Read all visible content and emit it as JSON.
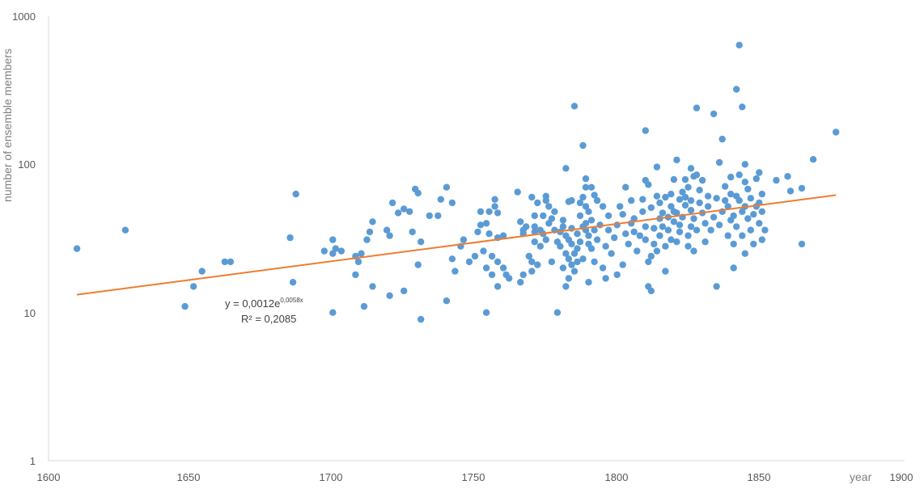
{
  "chart_data": {
    "type": "scatter",
    "title": "",
    "xlabel": "year",
    "ylabel": "number of ensemble members",
    "xlim": [
      1600,
      1900
    ],
    "ylim": [
      1,
      1000
    ],
    "yscale": "log",
    "grid": false,
    "legend": "none",
    "x_ticks": [
      "1600",
      "1650",
      "1700",
      "1750",
      "1800",
      "1850",
      "1900"
    ],
    "y_ticks": [
      "1",
      "10",
      "100",
      "1000"
    ],
    "marker_color": "#5b9bd5",
    "trendline": {
      "type": "exponential",
      "color": "#ed7d31",
      "a": 0.0012,
      "b": 0.0058,
      "x_range": [
        1610,
        1877
      ],
      "y_range": [
        13.2,
        62
      ],
      "equation_prefix": "y = 0,0012e",
      "equation_exponent": "0,0058x",
      "r2_label": "R² = 0,2085"
    },
    "points": [
      [
        1610,
        27
      ],
      [
        1627,
        36
      ],
      [
        1648,
        11
      ],
      [
        1651,
        15
      ],
      [
        1654,
        19
      ],
      [
        1662,
        22
      ],
      [
        1664,
        22
      ],
      [
        1685,
        32
      ],
      [
        1686,
        16
      ],
      [
        1687,
        63
      ],
      [
        1697,
        26
      ],
      [
        1700,
        31
      ],
      [
        1700,
        25
      ],
      [
        1700,
        10
      ],
      [
        1701,
        27
      ],
      [
        1703,
        26
      ],
      [
        1708,
        18
      ],
      [
        1708,
        24
      ],
      [
        1709,
        22
      ],
      [
        1710,
        25
      ],
      [
        1711,
        11
      ],
      [
        1712,
        31
      ],
      [
        1713,
        35
      ],
      [
        1714,
        15
      ],
      [
        1714,
        41
      ],
      [
        1719,
        36
      ],
      [
        1720,
        33
      ],
      [
        1720,
        13
      ],
      [
        1721,
        55
      ],
      [
        1723,
        47
      ],
      [
        1725,
        50
      ],
      [
        1725,
        14
      ],
      [
        1727,
        48
      ],
      [
        1728,
        35
      ],
      [
        1729,
        68
      ],
      [
        1730,
        64
      ],
      [
        1730,
        21
      ],
      [
        1731,
        9
      ],
      [
        1731,
        30
      ],
      [
        1734,
        45
      ],
      [
        1737,
        45
      ],
      [
        1738,
        58
      ],
      [
        1740,
        12
      ],
      [
        1740,
        70
      ],
      [
        1742,
        55
      ],
      [
        1742,
        23
      ],
      [
        1743,
        19
      ],
      [
        1745,
        28
      ],
      [
        1746,
        31
      ],
      [
        1748,
        22
      ],
      [
        1750,
        24
      ],
      [
        1751,
        35
      ],
      [
        1752,
        48
      ],
      [
        1752,
        39
      ],
      [
        1753,
        26
      ],
      [
        1754,
        20
      ],
      [
        1754,
        40
      ],
      [
        1754,
        10
      ],
      [
        1755,
        48
      ],
      [
        1755,
        34
      ],
      [
        1756,
        18
      ],
      [
        1756,
        24
      ],
      [
        1757,
        58
      ],
      [
        1757,
        52
      ],
      [
        1758,
        47
      ],
      [
        1758,
        22
      ],
      [
        1758,
        15
      ],
      [
        1758,
        32
      ],
      [
        1760,
        33
      ],
      [
        1760,
        20
      ],
      [
        1761,
        18
      ],
      [
        1762,
        17
      ],
      [
        1765,
        65
      ],
      [
        1766,
        41
      ],
      [
        1766,
        16
      ],
      [
        1767,
        36
      ],
      [
        1767,
        34
      ],
      [
        1767,
        18
      ],
      [
        1768,
        38
      ],
      [
        1769,
        24
      ],
      [
        1770,
        19
      ],
      [
        1770,
        60
      ],
      [
        1770,
        22
      ],
      [
        1771,
        45
      ],
      [
        1771,
        38
      ],
      [
        1771,
        30
      ],
      [
        1771,
        35
      ],
      [
        1772,
        21
      ],
      [
        1772,
        55
      ],
      [
        1773,
        28
      ],
      [
        1773,
        36
      ],
      [
        1774,
        45
      ],
      [
        1774,
        34
      ],
      [
        1775,
        61
      ],
      [
        1775,
        57
      ],
      [
        1775,
        31
      ],
      [
        1776,
        40
      ],
      [
        1776,
        52
      ],
      [
        1777,
        22
      ],
      [
        1777,
        43
      ],
      [
        1778,
        48
      ],
      [
        1778,
        36
      ],
      [
        1779,
        10
      ],
      [
        1779,
        30
      ],
      [
        1780,
        35
      ],
      [
        1780,
        28
      ],
      [
        1781,
        20
      ],
      [
        1781,
        38
      ],
      [
        1781,
        42
      ],
      [
        1782,
        94
      ],
      [
        1782,
        33
      ],
      [
        1782,
        25
      ],
      [
        1782,
        15
      ],
      [
        1783,
        17
      ],
      [
        1783,
        23
      ],
      [
        1783,
        31
      ],
      [
        1783,
        56
      ],
      [
        1784,
        57
      ],
      [
        1784,
        37
      ],
      [
        1784,
        21
      ],
      [
        1784,
        29
      ],
      [
        1785,
        247
      ],
      [
        1785,
        25
      ],
      [
        1785,
        19
      ],
      [
        1786,
        27
      ],
      [
        1786,
        34
      ],
      [
        1786,
        22
      ],
      [
        1787,
        45
      ],
      [
        1787,
        55
      ],
      [
        1787,
        30
      ],
      [
        1788,
        38
      ],
      [
        1788,
        60
      ],
      [
        1788,
        23
      ],
      [
        1788,
        134
      ],
      [
        1789,
        80
      ],
      [
        1789,
        70
      ],
      [
        1789,
        52
      ],
      [
        1789,
        36
      ],
      [
        1789,
        40
      ],
      [
        1790,
        48
      ],
      [
        1790,
        29
      ],
      [
        1790,
        33
      ],
      [
        1790,
        16
      ],
      [
        1791,
        70
      ],
      [
        1791,
        42
      ],
      [
        1791,
        27
      ],
      [
        1792,
        62
      ],
      [
        1792,
        36
      ],
      [
        1792,
        22
      ],
      [
        1793,
        57
      ],
      [
        1793,
        31
      ],
      [
        1794,
        39
      ],
      [
        1795,
        20
      ],
      [
        1795,
        52
      ],
      [
        1796,
        28
      ],
      [
        1796,
        17
      ],
      [
        1797,
        36
      ],
      [
        1797,
        45
      ],
      [
        1798,
        25
      ],
      [
        1799,
        32
      ],
      [
        1800,
        39
      ],
      [
        1800,
        18
      ],
      [
        1801,
        52
      ],
      [
        1802,
        21
      ],
      [
        1802,
        46
      ],
      [
        1803,
        70
      ],
      [
        1803,
        34
      ],
      [
        1804,
        29
      ],
      [
        1805,
        57
      ],
      [
        1805,
        40
      ],
      [
        1806,
        43
      ],
      [
        1806,
        35
      ],
      [
        1807,
        26
      ],
      [
        1808,
        33
      ],
      [
        1809,
        48
      ],
      [
        1809,
        58
      ],
      [
        1810,
        169
      ],
      [
        1810,
        78
      ],
      [
        1810,
        38
      ],
      [
        1810,
        31
      ],
      [
        1811,
        15
      ],
      [
        1811,
        22
      ],
      [
        1811,
        73
      ],
      [
        1812,
        14
      ],
      [
        1812,
        51
      ],
      [
        1812,
        24
      ],
      [
        1813,
        29
      ],
      [
        1813,
        37
      ],
      [
        1814,
        26
      ],
      [
        1814,
        61
      ],
      [
        1814,
        96
      ],
      [
        1815,
        43
      ],
      [
        1815,
        55
      ],
      [
        1815,
        33
      ],
      [
        1816,
        47
      ],
      [
        1816,
        38
      ],
      [
        1817,
        19
      ],
      [
        1817,
        60
      ],
      [
        1817,
        28
      ],
      [
        1818,
        44
      ],
      [
        1818,
        36
      ],
      [
        1819,
        52
      ],
      [
        1819,
        31
      ],
      [
        1819,
        63
      ],
      [
        1820,
        79
      ],
      [
        1820,
        48
      ],
      [
        1820,
        41
      ],
      [
        1821,
        107
      ],
      [
        1821,
        30
      ],
      [
        1821,
        47
      ],
      [
        1822,
        39
      ],
      [
        1822,
        58
      ],
      [
        1822,
        35
      ],
      [
        1823,
        65
      ],
      [
        1823,
        44
      ],
      [
        1824,
        79
      ],
      [
        1824,
        60
      ],
      [
        1824,
        53
      ],
      [
        1825,
        33
      ],
      [
        1825,
        28
      ],
      [
        1825,
        70
      ],
      [
        1826,
        49
      ],
      [
        1826,
        38
      ],
      [
        1826,
        57
      ],
      [
        1826,
        94
      ],
      [
        1827,
        26
      ],
      [
        1827,
        83
      ],
      [
        1827,
        43
      ],
      [
        1828,
        240
      ],
      [
        1828,
        36
      ],
      [
        1828,
        85
      ],
      [
        1829,
        55
      ],
      [
        1829,
        67
      ],
      [
        1830,
        78
      ],
      [
        1830,
        47
      ],
      [
        1831,
        40
      ],
      [
        1831,
        30
      ],
      [
        1832,
        52
      ],
      [
        1832,
        61
      ],
      [
        1833,
        36
      ],
      [
        1834,
        219
      ],
      [
        1834,
        44
      ],
      [
        1835,
        15
      ],
      [
        1835,
        59
      ],
      [
        1836,
        39
      ],
      [
        1836,
        103
      ],
      [
        1837,
        148
      ],
      [
        1837,
        48
      ],
      [
        1838,
        71
      ],
      [
        1838,
        57
      ],
      [
        1839,
        33
      ],
      [
        1839,
        52
      ],
      [
        1840,
        63
      ],
      [
        1840,
        42
      ],
      [
        1840,
        82
      ],
      [
        1841,
        20
      ],
      [
        1841,
        45
      ],
      [
        1841,
        29
      ],
      [
        1842,
        321
      ],
      [
        1842,
        38
      ],
      [
        1842,
        61
      ],
      [
        1843,
        638
      ],
      [
        1843,
        57
      ],
      [
        1843,
        85
      ],
      [
        1844,
        244
      ],
      [
        1844,
        48
      ],
      [
        1844,
        33
      ],
      [
        1845,
        100
      ],
      [
        1845,
        76
      ],
      [
        1845,
        52
      ],
      [
        1845,
        25
      ],
      [
        1846,
        43
      ],
      [
        1846,
        68
      ],
      [
        1847,
        36
      ],
      [
        1847,
        59
      ],
      [
        1848,
        29
      ],
      [
        1848,
        46
      ],
      [
        1849,
        52
      ],
      [
        1849,
        80
      ],
      [
        1850,
        40
      ],
      [
        1850,
        88
      ],
      [
        1850,
        55
      ],
      [
        1851,
        31
      ],
      [
        1851,
        63
      ],
      [
        1851,
        48
      ],
      [
        1852,
        36
      ],
      [
        1856,
        78
      ],
      [
        1860,
        83
      ],
      [
        1861,
        66
      ],
      [
        1865,
        29
      ],
      [
        1865,
        69
      ],
      [
        1869,
        108
      ],
      [
        1877,
        165
      ]
    ]
  }
}
